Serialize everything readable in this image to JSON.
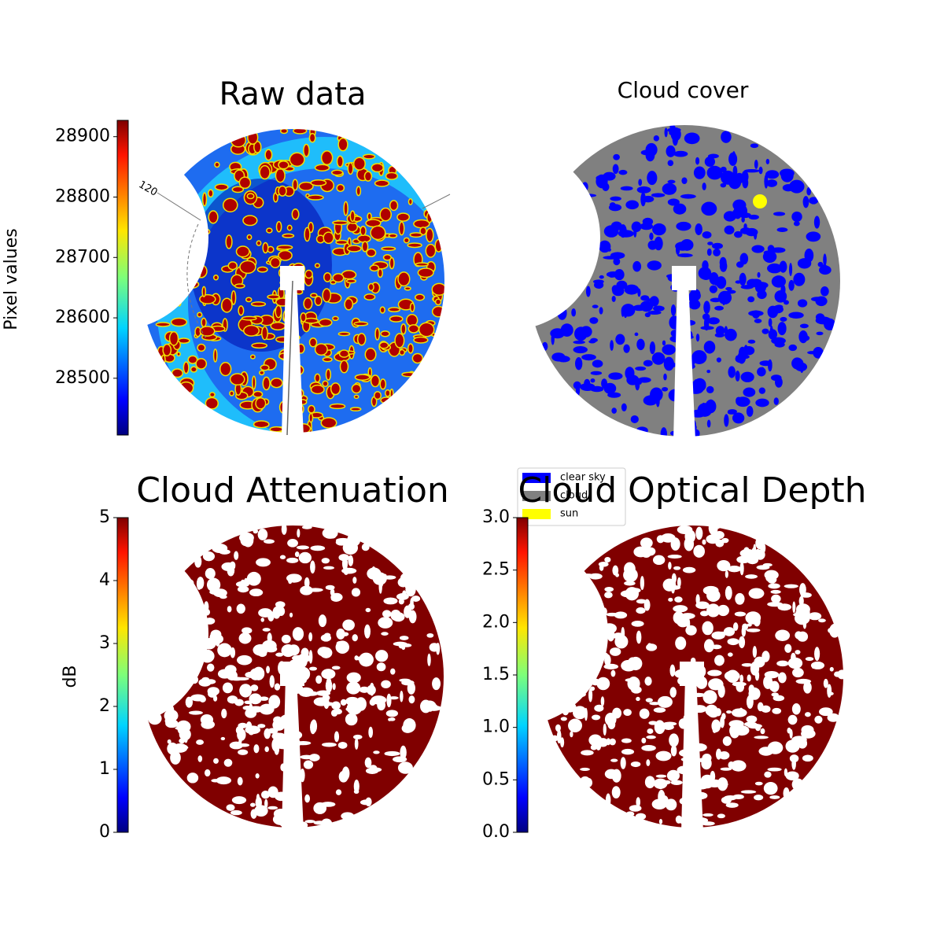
{
  "chart_data": [
    {
      "type": "image",
      "title": "Raw data",
      "annotation": "120",
      "colorbar": {
        "label": "Pixel values",
        "ylim": [
          28406,
          28927
        ],
        "yticks": [
          28500,
          28600,
          28700,
          28800,
          28900
        ]
      }
    },
    {
      "type": "image",
      "title": "Cloud cover",
      "series": [
        {
          "name": "clear sky",
          "color": "#0000ff"
        },
        {
          "name": "cloud",
          "color": "#808080"
        },
        {
          "name": "sun",
          "color": "#ffff00"
        }
      ]
    },
    {
      "type": "image",
      "title": "Cloud Attenuation",
      "colorbar": {
        "label": "dB",
        "ylim": [
          0,
          5
        ],
        "yticks": [
          0,
          1,
          2,
          3,
          4,
          5
        ]
      }
    },
    {
      "type": "image",
      "title": "Cloud Optical Depth",
      "colorbar": {
        "ylim": [
          0,
          3
        ],
        "yticks": [
          {
            "value": 0,
            "label": "0.0"
          },
          0.5,
          {
            "value": 1,
            "label": "1.0"
          },
          1.5,
          {
            "value": 2,
            "label": "2.0"
          },
          2.5,
          {
            "value": 3,
            "label": "3.0"
          }
        ]
      }
    }
  ]
}
